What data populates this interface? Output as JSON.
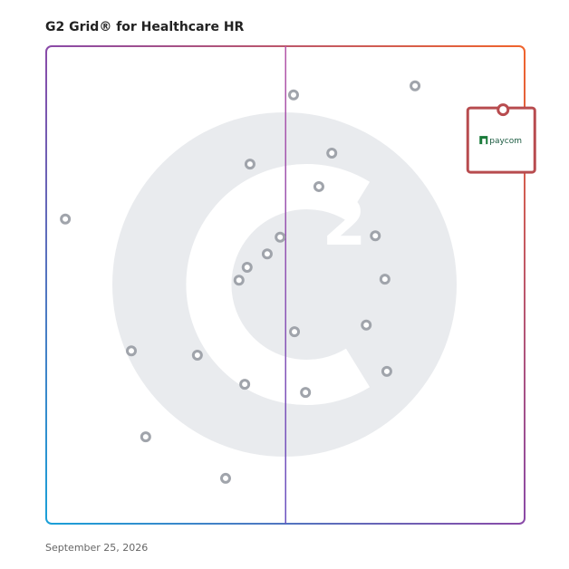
{
  "chart_data": {
    "type": "scatter",
    "title": "G2 Grid® for Healthcare HR",
    "date": "September 25, 2026",
    "xlim": [
      0,
      100
    ],
    "ylim": [
      0,
      100
    ],
    "series": [
      {
        "color": "#a0a4ab",
        "x": [
          51.7,
          77.1,
          59.7,
          42.6,
          57.0,
          4.0,
          48.9,
          68.8,
          46.2,
          42.0,
          40.3,
          70.8,
          51.9,
          66.9,
          17.8,
          31.6,
          41.5,
          54.2,
          71.2,
          20.8,
          37.5
        ],
        "values": [
          89.8,
          91.7,
          77.6,
          75.3,
          70.6,
          63.8,
          60.0,
          60.3,
          56.5,
          53.7,
          51.0,
          51.2,
          40.2,
          41.6,
          36.2,
          35.3,
          29.2,
          27.5,
          31.9,
          18.2,
          9.5
        ]
      },
      {
        "name": "paycom",
        "color": "#b84c4f",
        "x": [
          95.5
        ],
        "values": [
          86.7
        ]
      }
    ]
  }
}
